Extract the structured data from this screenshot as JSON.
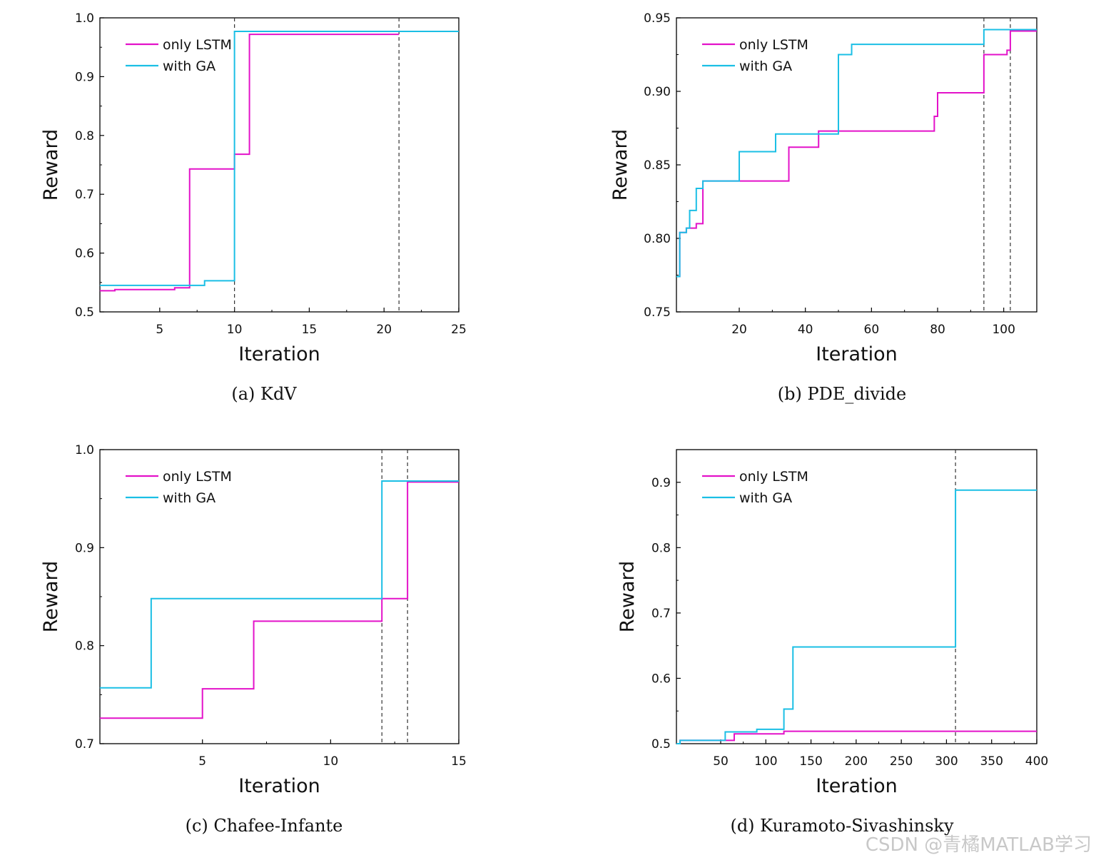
{
  "colors": {
    "only_lstm": "#e312c9",
    "with_ga": "#1bbfe5",
    "axis": "#000000",
    "vline": "#333333"
  },
  "watermark": "CSDN @青橘MATLAB学习",
  "chart_data": [
    {
      "type": "line",
      "step": true,
      "caption": "(a) KdV",
      "xlabel": "Iteration",
      "ylabel": "Reward",
      "xlim": [
        1,
        25
      ],
      "ylim": [
        0.5,
        1.0
      ],
      "xticks": [
        5,
        10,
        15,
        20,
        25
      ],
      "xtick_labels": [
        "5",
        "10",
        "15",
        "20",
        "25"
      ],
      "yticks": [
        0.5,
        0.6,
        0.7,
        0.8,
        0.9,
        1.0
      ],
      "ytick_labels": [
        "0.5",
        "0.6",
        "0.7",
        "0.8",
        "0.9",
        "1.0"
      ],
      "legend_position": "top-left",
      "vlines": [
        10,
        21
      ],
      "series": [
        {
          "name": "only LSTM",
          "color": "#e312c9",
          "x": [
            1,
            2,
            6,
            7,
            10,
            11,
            21
          ],
          "y": [
            0.536,
            0.538,
            0.541,
            0.743,
            0.768,
            0.972,
            0.972
          ]
        },
        {
          "name": "with GA",
          "color": "#1bbfe5",
          "x": [
            1,
            8,
            10,
            25
          ],
          "y": [
            0.545,
            0.553,
            0.977,
            0.977
          ]
        }
      ]
    },
    {
      "type": "line",
      "step": true,
      "caption": "(b) PDE_divide",
      "xlabel": "Iteration",
      "ylabel": "Reward",
      "xlim": [
        1,
        110
      ],
      "ylim": [
        0.75,
        0.95
      ],
      "xticks": [
        20,
        40,
        60,
        80,
        100
      ],
      "xtick_labels": [
        "20",
        "40",
        "60",
        "80",
        "100"
      ],
      "yticks": [
        0.75,
        0.8,
        0.85,
        0.9,
        0.95
      ],
      "ytick_labels": [
        "0.75",
        "0.80",
        "0.85",
        "0.90",
        "0.95"
      ],
      "legend_position": "top-left",
      "vlines": [
        94,
        102
      ],
      "series": [
        {
          "name": "only LSTM",
          "color": "#e312c9",
          "x": [
            1,
            2,
            4,
            7,
            9,
            35,
            44,
            79,
            80,
            94,
            101,
            102,
            110
          ],
          "y": [
            0.774,
            0.804,
            0.807,
            0.81,
            0.839,
            0.862,
            0.873,
            0.883,
            0.899,
            0.925,
            0.928,
            0.941,
            0.941
          ]
        },
        {
          "name": "with GA",
          "color": "#1bbfe5",
          "x": [
            1,
            2,
            4,
            5,
            7,
            9,
            20,
            31,
            50,
            54,
            94,
            110
          ],
          "y": [
            0.774,
            0.804,
            0.807,
            0.819,
            0.834,
            0.839,
            0.859,
            0.871,
            0.925,
            0.932,
            0.942,
            0.942
          ]
        }
      ]
    },
    {
      "type": "line",
      "step": true,
      "caption": "(c) Chafee-Infante",
      "xlabel": "Iteration",
      "ylabel": "Reward",
      "xlim": [
        1,
        15
      ],
      "ylim": [
        0.7,
        1.0
      ],
      "xticks": [
        5,
        10,
        15
      ],
      "xtick_labels": [
        "5",
        "10",
        "15"
      ],
      "yticks": [
        0.7,
        0.8,
        0.9,
        1.0
      ],
      "ytick_labels": [
        "0.7",
        "0.8",
        "0.9",
        "1.0"
      ],
      "legend_position": "top-left",
      "vlines": [
        12,
        13
      ],
      "series": [
        {
          "name": "only LSTM",
          "color": "#e312c9",
          "x": [
            1,
            5,
            7,
            12,
            13,
            15
          ],
          "y": [
            0.726,
            0.756,
            0.825,
            0.848,
            0.967,
            0.967
          ]
        },
        {
          "name": "with GA",
          "color": "#1bbfe5",
          "x": [
            1,
            3,
            12,
            15
          ],
          "y": [
            0.757,
            0.848,
            0.968,
            0.968
          ]
        }
      ]
    },
    {
      "type": "line",
      "step": true,
      "caption": "(d) Kuramoto-Sivashinsky",
      "xlabel": "Iteration",
      "ylabel": "Reward",
      "xlim": [
        1,
        400
      ],
      "ylim": [
        0.5,
        0.95
      ],
      "xticks": [
        50,
        100,
        150,
        200,
        250,
        300,
        350,
        400
      ],
      "xtick_labels": [
        "50",
        "100",
        "150",
        "200",
        "250",
        "300",
        "350",
        "400"
      ],
      "yticks": [
        0.5,
        0.6,
        0.7,
        0.8,
        0.9
      ],
      "ytick_labels": [
        "0.5",
        "0.6",
        "0.7",
        "0.8",
        "0.9"
      ],
      "legend_position": "top-left",
      "vlines": [
        310
      ],
      "series": [
        {
          "name": "only LSTM",
          "color": "#e312c9",
          "x": [
            1,
            5,
            60,
            65,
            115,
            120,
            400
          ],
          "y": [
            0.5,
            0.505,
            0.505,
            0.515,
            0.515,
            0.519,
            0.519
          ]
        },
        {
          "name": "with GA",
          "color": "#1bbfe5",
          "x": [
            1,
            5,
            55,
            90,
            120,
            130,
            310,
            400
          ],
          "y": [
            0.5,
            0.505,
            0.518,
            0.522,
            0.553,
            0.648,
            0.888,
            0.888
          ]
        }
      ]
    }
  ]
}
